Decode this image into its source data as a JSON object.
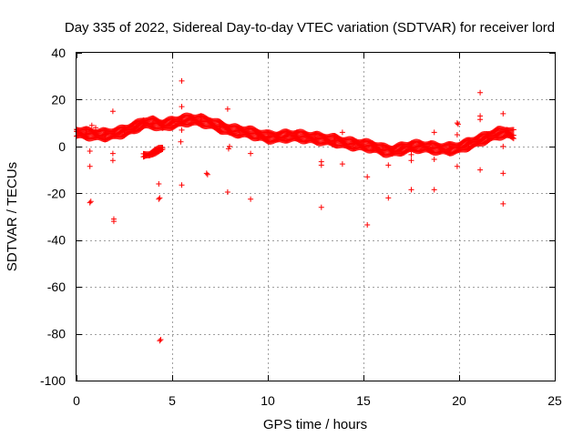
{
  "chart_data": {
    "type": "scatter",
    "title": "Day 335 of 2022, Sidereal Day-to-day VTEC variation (SDTVAR) for receiver lord",
    "xlabel": "GPS time / hours",
    "ylabel": "SDTVAR / TECUs",
    "xlim": [
      0,
      25
    ],
    "ylim": [
      -100,
      40
    ],
    "xticks": [
      0,
      5,
      10,
      15,
      20,
      25
    ],
    "yticks": [
      -100,
      -80,
      -60,
      -40,
      -20,
      0,
      20,
      40
    ],
    "grid": true,
    "marker": "+",
    "series_color": "#ff0000",
    "dense_trend": [
      [
        0.0,
        6
      ],
      [
        0.5,
        5.5
      ],
      [
        1.0,
        5
      ],
      [
        1.5,
        5
      ],
      [
        2.0,
        5.5
      ],
      [
        2.5,
        6.5
      ],
      [
        3.0,
        8
      ],
      [
        3.5,
        10
      ],
      [
        4.0,
        10
      ],
      [
        4.5,
        9
      ],
      [
        5.0,
        10
      ],
      [
        5.5,
        11
      ],
      [
        6.0,
        11.5
      ],
      [
        6.5,
        11
      ],
      [
        7.0,
        10
      ],
      [
        7.5,
        8.5
      ],
      [
        8.0,
        7
      ],
      [
        8.5,
        6.5
      ],
      [
        9.0,
        6
      ],
      [
        9.5,
        5
      ],
      [
        10.0,
        4
      ],
      [
        10.5,
        4
      ],
      [
        11.0,
        4.5
      ],
      [
        11.5,
        4.5
      ],
      [
        12.0,
        4
      ],
      [
        12.5,
        3.5
      ],
      [
        13.0,
        3
      ],
      [
        13.5,
        2.5
      ],
      [
        14.0,
        1.5
      ],
      [
        14.5,
        1
      ],
      [
        15.0,
        0.5
      ],
      [
        15.5,
        0
      ],
      [
        16.0,
        -1.5
      ],
      [
        16.5,
        -2
      ],
      [
        17.0,
        -1
      ],
      [
        17.5,
        0
      ],
      [
        18.0,
        0
      ],
      [
        18.5,
        -0.5
      ],
      [
        19.0,
        -1
      ],
      [
        19.5,
        -1
      ],
      [
        20.0,
        -0.5
      ],
      [
        20.5,
        1
      ],
      [
        21.0,
        2.5
      ],
      [
        21.5,
        4
      ],
      [
        22.0,
        5.5
      ],
      [
        22.5,
        6
      ],
      [
        22.9,
        5
      ]
    ],
    "secondary_branch": [
      [
        3.5,
        -4
      ],
      [
        3.8,
        -3.5
      ],
      [
        4.0,
        -2.5
      ],
      [
        4.3,
        -1.5
      ],
      [
        4.5,
        -1
      ]
    ],
    "outliers": [
      [
        0.7,
        -24
      ],
      [
        0.75,
        -23.5
      ],
      [
        0.7,
        -8.5
      ],
      [
        0.7,
        -2
      ],
      [
        0.8,
        9
      ],
      [
        1.0,
        8
      ],
      [
        1.9,
        15
      ],
      [
        1.95,
        -31
      ],
      [
        1.95,
        -32
      ],
      [
        1.9,
        -6
      ],
      [
        1.9,
        -3
      ],
      [
        4.3,
        -16
      ],
      [
        4.35,
        -22
      ],
      [
        4.3,
        -22.5
      ],
      [
        4.4,
        -82.5
      ],
      [
        4.35,
        -83
      ],
      [
        5.5,
        28
      ],
      [
        5.5,
        17
      ],
      [
        5.5,
        7
      ],
      [
        5.45,
        2
      ],
      [
        5.5,
        -16.5
      ],
      [
        6.8,
        -11.5
      ],
      [
        6.85,
        -12
      ],
      [
        7.9,
        16
      ],
      [
        7.9,
        -19.5
      ],
      [
        8.0,
        0
      ],
      [
        7.95,
        -1
      ],
      [
        9.1,
        -3
      ],
      [
        9.1,
        -22.5
      ],
      [
        12.8,
        -26
      ],
      [
        12.8,
        -6.5
      ],
      [
        12.8,
        -8
      ],
      [
        13.9,
        6
      ],
      [
        13.9,
        -7.5
      ],
      [
        15.2,
        -13
      ],
      [
        15.2,
        -33.5
      ],
      [
        16.3,
        -8
      ],
      [
        16.3,
        -22
      ],
      [
        17.5,
        -18.5
      ],
      [
        17.5,
        -6
      ],
      [
        17.5,
        -3.5
      ],
      [
        18.7,
        6
      ],
      [
        18.7,
        -5.5
      ],
      [
        18.7,
        -18.5
      ],
      [
        19.9,
        10
      ],
      [
        19.95,
        9.5
      ],
      [
        19.9,
        5
      ],
      [
        19.9,
        -8.5
      ],
      [
        21.1,
        23
      ],
      [
        21.1,
        13
      ],
      [
        21.1,
        11.5
      ],
      [
        21.1,
        -10
      ],
      [
        22.3,
        14
      ],
      [
        22.3,
        0
      ],
      [
        22.3,
        -11.5
      ],
      [
        22.3,
        -24.5
      ]
    ]
  }
}
